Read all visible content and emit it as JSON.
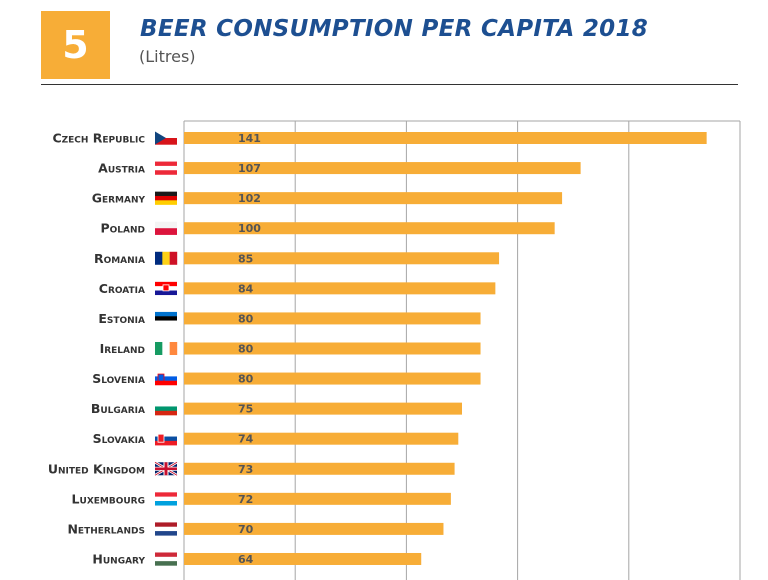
{
  "header": {
    "number": "5",
    "title": "BEER CONSUMPTION PER CAPITA 2018",
    "subtitle": "(Litres)"
  },
  "colors": {
    "bar": "#f7ad37",
    "badge": "#f7ad37",
    "title": "#1d4f91",
    "grid": "#a6a6a6"
  },
  "chart_data": {
    "type": "bar",
    "orientation": "horizontal",
    "title": "BEER CONSUMPTION PER CAPITA 2018",
    "subtitle": "(Litres)",
    "categories": [
      "Czech Republic",
      "Austria",
      "Germany",
      "Poland",
      "Romania",
      "Croatia",
      "Estonia",
      "Ireland",
      "Slovenia",
      "Bulgaria",
      "Slovakia",
      "United Kingdom",
      "Luxembourg",
      "Netherlands",
      "Hungary"
    ],
    "values": [
      141,
      107,
      102,
      100,
      85,
      84,
      80,
      80,
      80,
      75,
      74,
      73,
      72,
      70,
      64
    ],
    "flags": [
      "czech-flag",
      "austria-flag",
      "germany-flag",
      "poland-flag",
      "romania-flag",
      "croatia-flag",
      "estonia-flag",
      "ireland-flag",
      "slovenia-flag",
      "bulgaria-flag",
      "slovakia-flag",
      "uk-flag",
      "luxembourg-flag",
      "netherlands-flag",
      "hungary-flag"
    ],
    "xlim": [
      0,
      150
    ],
    "grid": true,
    "data_labels": true
  }
}
